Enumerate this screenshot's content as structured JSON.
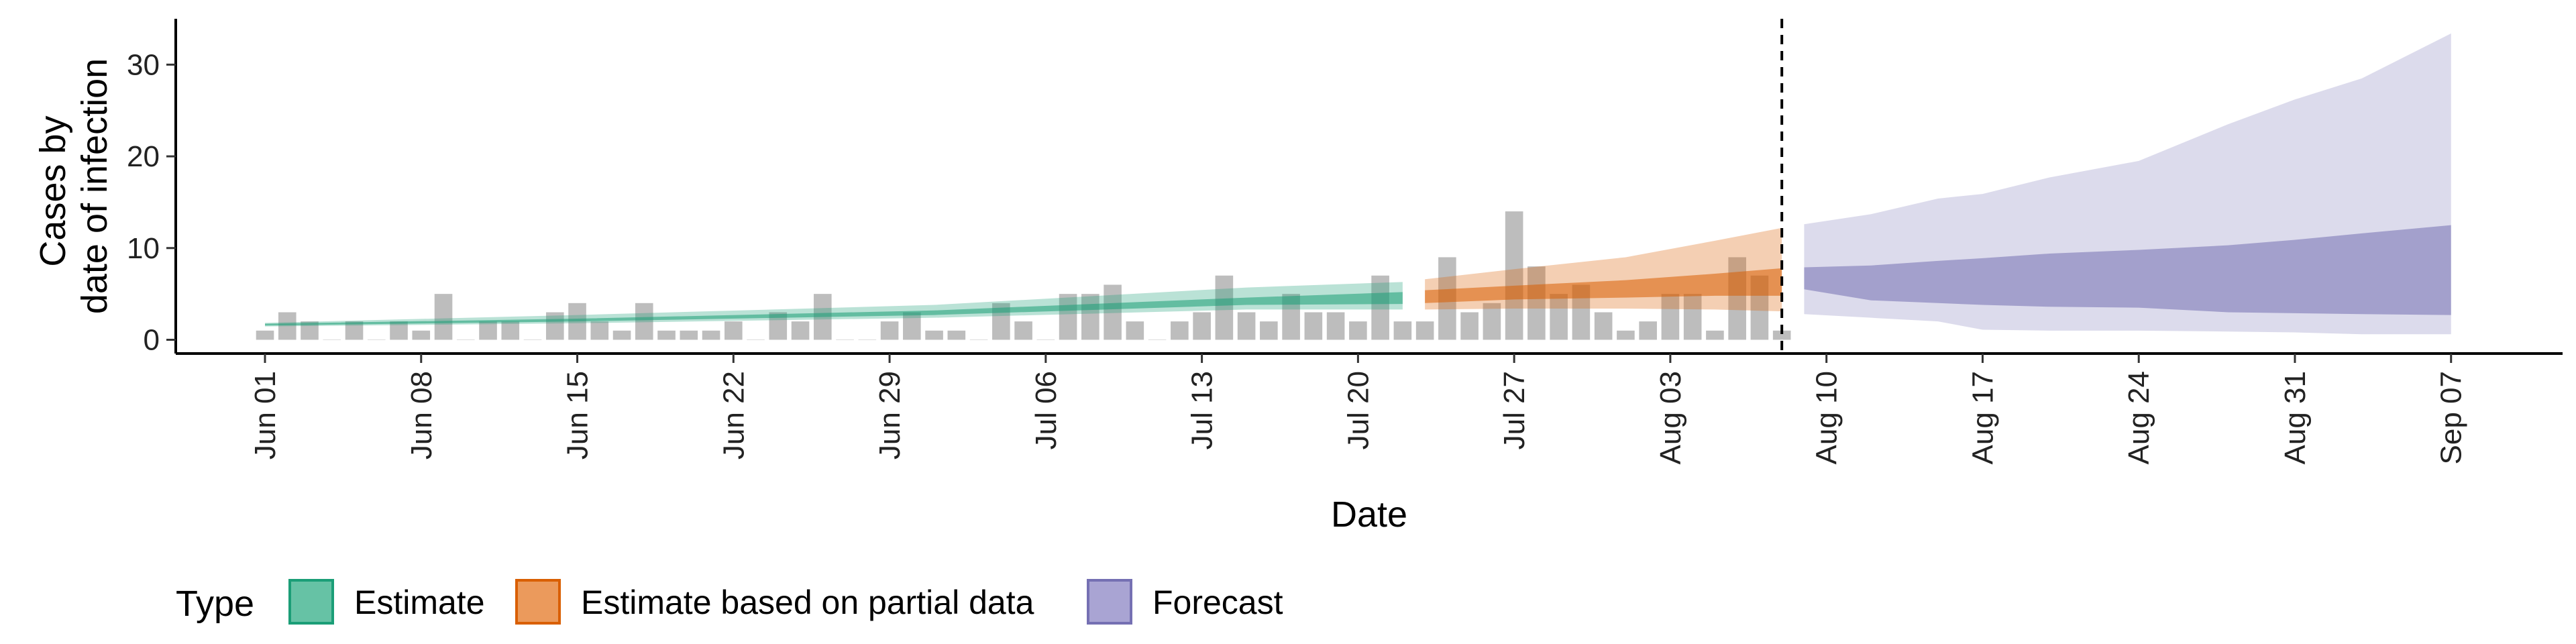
{
  "chart_data": {
    "type": "area",
    "title": "",
    "xlabel": "Date",
    "ylabel_lines": [
      "Cases by",
      "date of infection"
    ],
    "xlim": [
      "2020-05-28",
      "2020-09-12"
    ],
    "ylim": [
      -1.5,
      35
    ],
    "y_ticks": [
      0,
      10,
      20,
      30
    ],
    "x_ticks": [
      {
        "date": "2020-06-01",
        "label": "Jun 01"
      },
      {
        "date": "2020-06-08",
        "label": "Jun 08"
      },
      {
        "date": "2020-06-15",
        "label": "Jun 15"
      },
      {
        "date": "2020-06-22",
        "label": "Jun 22"
      },
      {
        "date": "2020-06-29",
        "label": "Jun 29"
      },
      {
        "date": "2020-07-06",
        "label": "Jul 06"
      },
      {
        "date": "2020-07-13",
        "label": "Jul 13"
      },
      {
        "date": "2020-07-20",
        "label": "Jul 20"
      },
      {
        "date": "2020-07-27",
        "label": "Jul 27"
      },
      {
        "date": "2020-08-03",
        "label": "Aug 03"
      },
      {
        "date": "2020-08-10",
        "label": "Aug 10"
      },
      {
        "date": "2020-08-17",
        "label": "Aug 17"
      },
      {
        "date": "2020-08-24",
        "label": "Aug 24"
      },
      {
        "date": "2020-08-31",
        "label": "Aug 31"
      },
      {
        "date": "2020-09-07",
        "label": "Sep 07"
      }
    ],
    "grid": false,
    "legend": {
      "title": "Type",
      "position": "bottom",
      "entries": [
        {
          "label": "Estimate",
          "fill": "#66c2a5",
          "stroke": "#1b9e77"
        },
        {
          "label": "Estimate based on partial data",
          "fill": "#eb9a5c",
          "stroke": "#d95f02"
        },
        {
          "label": "Forecast",
          "fill": "#a9a4d3",
          "stroke": "#7570b3"
        }
      ]
    },
    "vline": {
      "date": "2020-08-08",
      "style": "dashed"
    },
    "bars": {
      "color": "#bdbdbd",
      "start": "2020-06-01",
      "values": [
        1,
        3,
        2,
        0,
        2,
        0,
        2,
        1,
        5,
        0,
        2,
        2,
        0,
        3,
        4,
        2,
        1,
        4,
        1,
        1,
        1,
        2,
        0,
        3,
        2,
        5,
        0,
        0,
        2,
        3,
        1,
        1,
        0,
        4,
        2,
        0,
        5,
        5,
        6,
        2,
        0,
        2,
        3,
        7,
        3,
        2,
        5,
        3,
        3,
        2,
        7,
        2,
        2,
        9,
        3,
        4,
        14,
        8,
        5,
        6,
        3,
        1,
        2,
        5,
        5,
        1,
        9,
        7,
        1
      ]
    },
    "series": [
      {
        "name": "Estimate",
        "color": "#1b9e77",
        "outer_opacity": 0.3,
        "inner_opacity": 0.55,
        "x": [
          "2020-06-01",
          "2020-06-15",
          "2020-07-01",
          "2020-07-15",
          "2020-07-22"
        ],
        "outer_lower": [
          1.45,
          1.8,
          2.4,
          3.3,
          3.3
        ],
        "outer_upper": [
          1.85,
          2.7,
          3.8,
          5.7,
          6.3
        ],
        "inner_lower": [
          1.55,
          2.0,
          2.7,
          3.8,
          3.9
        ],
        "inner_upper": [
          1.75,
          2.3,
          3.2,
          4.6,
          5.2
        ]
      },
      {
        "name": "Estimate based on partial data",
        "color": "#d95f02",
        "outer_opacity": 0.3,
        "inner_opacity": 0.55,
        "x": [
          "2020-07-23",
          "2020-07-27",
          "2020-08-01",
          "2020-08-05",
          "2020-08-08"
        ],
        "outer_lower": [
          3.3,
          3.4,
          3.4,
          3.3,
          3.1
        ],
        "outer_upper": [
          6.6,
          7.7,
          9.0,
          10.8,
          12.2
        ],
        "inner_lower": [
          4.0,
          4.4,
          4.6,
          4.8,
          4.8
        ],
        "inner_upper": [
          5.4,
          5.9,
          6.5,
          7.2,
          7.8
        ]
      },
      {
        "name": "Forecast",
        "color": "#7570b3",
        "outer_opacity": 0.25,
        "inner_opacity": 0.55,
        "x": [
          "2020-08-09",
          "2020-08-12",
          "2020-08-15",
          "2020-08-17",
          "2020-08-20",
          "2020-08-24",
          "2020-08-28",
          "2020-08-31",
          "2020-09-03",
          "2020-09-07"
        ],
        "outer_lower": [
          2.8,
          2.4,
          2.0,
          1.1,
          1.0,
          1.0,
          0.9,
          0.8,
          0.6,
          0.6
        ],
        "outer_upper": [
          12.6,
          13.7,
          15.4,
          15.9,
          17.7,
          19.5,
          23.5,
          26.2,
          28.5,
          33.4
        ],
        "inner_lower": [
          5.5,
          4.3,
          4.0,
          3.8,
          3.6,
          3.5,
          3.0,
          2.9,
          2.8,
          2.7
        ],
        "inner_upper": [
          7.9,
          8.1,
          8.6,
          8.9,
          9.4,
          9.8,
          10.3,
          10.9,
          11.6,
          12.5
        ]
      }
    ]
  }
}
